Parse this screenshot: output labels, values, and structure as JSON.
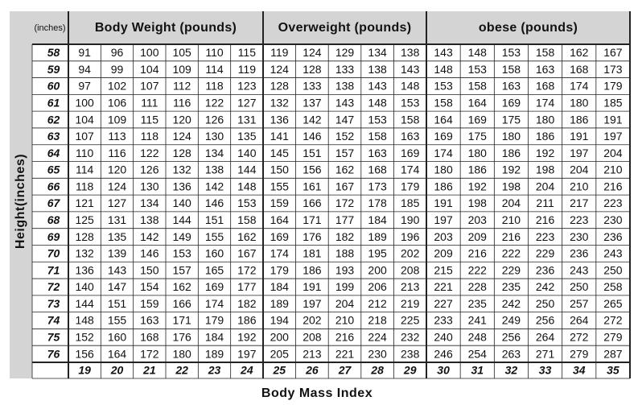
{
  "header": {
    "height_label": "(inches)",
    "groups": [
      "Body Weight (pounds)",
      "Overweight (pounds)",
      "obese (pounds)"
    ]
  },
  "y_axis_label": "Height(inches)",
  "x_axis_label": "Body Mass Index",
  "rows": [
    {
      "height": 58,
      "weights": [
        91,
        96,
        100,
        105,
        110,
        115,
        119,
        124,
        129,
        134,
        138,
        143,
        148,
        153,
        158,
        162,
        167
      ]
    },
    {
      "height": 59,
      "weights": [
        94,
        99,
        104,
        109,
        114,
        119,
        124,
        128,
        133,
        138,
        143,
        148,
        153,
        158,
        163,
        168,
        173
      ]
    },
    {
      "height": 60,
      "weights": [
        97,
        102,
        107,
        112,
        118,
        123,
        128,
        133,
        138,
        143,
        148,
        153,
        158,
        163,
        168,
        174,
        179
      ]
    },
    {
      "height": 61,
      "weights": [
        100,
        106,
        111,
        116,
        122,
        127,
        132,
        137,
        143,
        148,
        153,
        158,
        164,
        169,
        174,
        180,
        185
      ]
    },
    {
      "height": 62,
      "weights": [
        104,
        109,
        115,
        120,
        126,
        131,
        136,
        142,
        147,
        153,
        158,
        164,
        169,
        175,
        180,
        186,
        191
      ]
    },
    {
      "height": 63,
      "weights": [
        107,
        113,
        118,
        124,
        130,
        135,
        141,
        146,
        152,
        158,
        163,
        169,
        175,
        180,
        186,
        191,
        197
      ]
    },
    {
      "height": 64,
      "weights": [
        110,
        116,
        122,
        128,
        134,
        140,
        145,
        151,
        157,
        163,
        169,
        174,
        180,
        186,
        192,
        197,
        204
      ]
    },
    {
      "height": 65,
      "weights": [
        114,
        120,
        126,
        132,
        138,
        144,
        150,
        156,
        162,
        168,
        174,
        180,
        186,
        192,
        198,
        204,
        210
      ]
    },
    {
      "height": 66,
      "weights": [
        118,
        124,
        130,
        136,
        142,
        148,
        155,
        161,
        167,
        173,
        179,
        186,
        192,
        198,
        204,
        210,
        216
      ]
    },
    {
      "height": 67,
      "weights": [
        121,
        127,
        134,
        140,
        146,
        153,
        159,
        166,
        172,
        178,
        185,
        191,
        198,
        204,
        211,
        217,
        223
      ]
    },
    {
      "height": 68,
      "weights": [
        125,
        131,
        138,
        144,
        151,
        158,
        164,
        171,
        177,
        184,
        190,
        197,
        203,
        210,
        216,
        223,
        230
      ]
    },
    {
      "height": 69,
      "weights": [
        128,
        135,
        142,
        149,
        155,
        162,
        169,
        176,
        182,
        189,
        196,
        203,
        209,
        216,
        223,
        230,
        236
      ]
    },
    {
      "height": 70,
      "weights": [
        132,
        139,
        146,
        153,
        160,
        167,
        174,
        181,
        188,
        195,
        202,
        209,
        216,
        222,
        229,
        236,
        243
      ]
    },
    {
      "height": 71,
      "weights": [
        136,
        143,
        150,
        157,
        165,
        172,
        179,
        186,
        193,
        200,
        208,
        215,
        222,
        229,
        236,
        243,
        250
      ]
    },
    {
      "height": 72,
      "weights": [
        140,
        147,
        154,
        162,
        169,
        177,
        184,
        191,
        199,
        206,
        213,
        221,
        228,
        235,
        242,
        250,
        258
      ]
    },
    {
      "height": 73,
      "weights": [
        144,
        151,
        159,
        166,
        174,
        182,
        189,
        197,
        204,
        212,
        219,
        227,
        235,
        242,
        250,
        257,
        265
      ]
    },
    {
      "height": 74,
      "weights": [
        148,
        155,
        163,
        171,
        179,
        186,
        194,
        202,
        210,
        218,
        225,
        233,
        241,
        249,
        256,
        264,
        272
      ]
    },
    {
      "height": 75,
      "weights": [
        152,
        160,
        168,
        176,
        184,
        192,
        200,
        208,
        216,
        224,
        232,
        240,
        248,
        256,
        264,
        272,
        279
      ]
    },
    {
      "height": 76,
      "weights": [
        156,
        164,
        172,
        180,
        189,
        197,
        205,
        213,
        221,
        230,
        238,
        246,
        254,
        263,
        271,
        279,
        287
      ]
    }
  ],
  "bmi": [
    19,
    20,
    21,
    22,
    23,
    24,
    25,
    26,
    27,
    28,
    29,
    30,
    31,
    32,
    33,
    34,
    35
  ]
}
